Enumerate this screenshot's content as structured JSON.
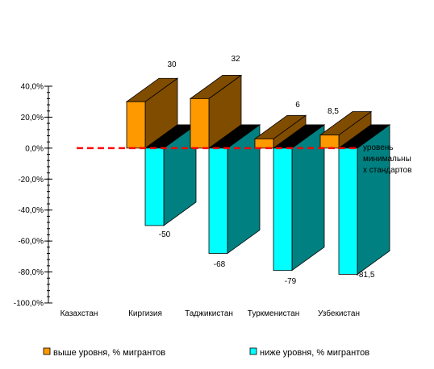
{
  "chart_data": {
    "type": "bar",
    "categories": [
      "Казахстан",
      "Киргизия",
      "Таджикистан",
      "Туркменистан",
      "Узбекистан"
    ],
    "series": [
      {
        "name": "выше уровня, % мигрантов",
        "values": [
          null,
          30,
          32,
          6,
          8.5
        ],
        "labels": [
          "",
          "30",
          "32",
          "6",
          "8,5"
        ],
        "color": "#ff9900",
        "side_color": "#804c00"
      },
      {
        "name": "ниже уровня, % мигрантов",
        "values": [
          null,
          -50,
          -68,
          -79,
          -81.5
        ],
        "labels": [
          "",
          "-50",
          "-68",
          "-79",
          "-81,5"
        ],
        "color": "#00ffff",
        "side_color": "#008080"
      }
    ],
    "ylim": [
      -100,
      40
    ],
    "yticks": [
      40,
      20,
      0,
      -20,
      -40,
      -60,
      -80,
      -100
    ],
    "ytick_labels": [
      "40,0%",
      "20,0%",
      "0,0%",
      "-20,0%",
      "-40,0%",
      "-60,0%",
      "-80,0%",
      "-100,0%"
    ],
    "reference_line": {
      "value": 0,
      "label_lines": [
        "уровень",
        "минимальны",
        "х стандартов"
      ],
      "color": "#ff0000"
    },
    "legend_position": "bottom",
    "grid": false
  }
}
